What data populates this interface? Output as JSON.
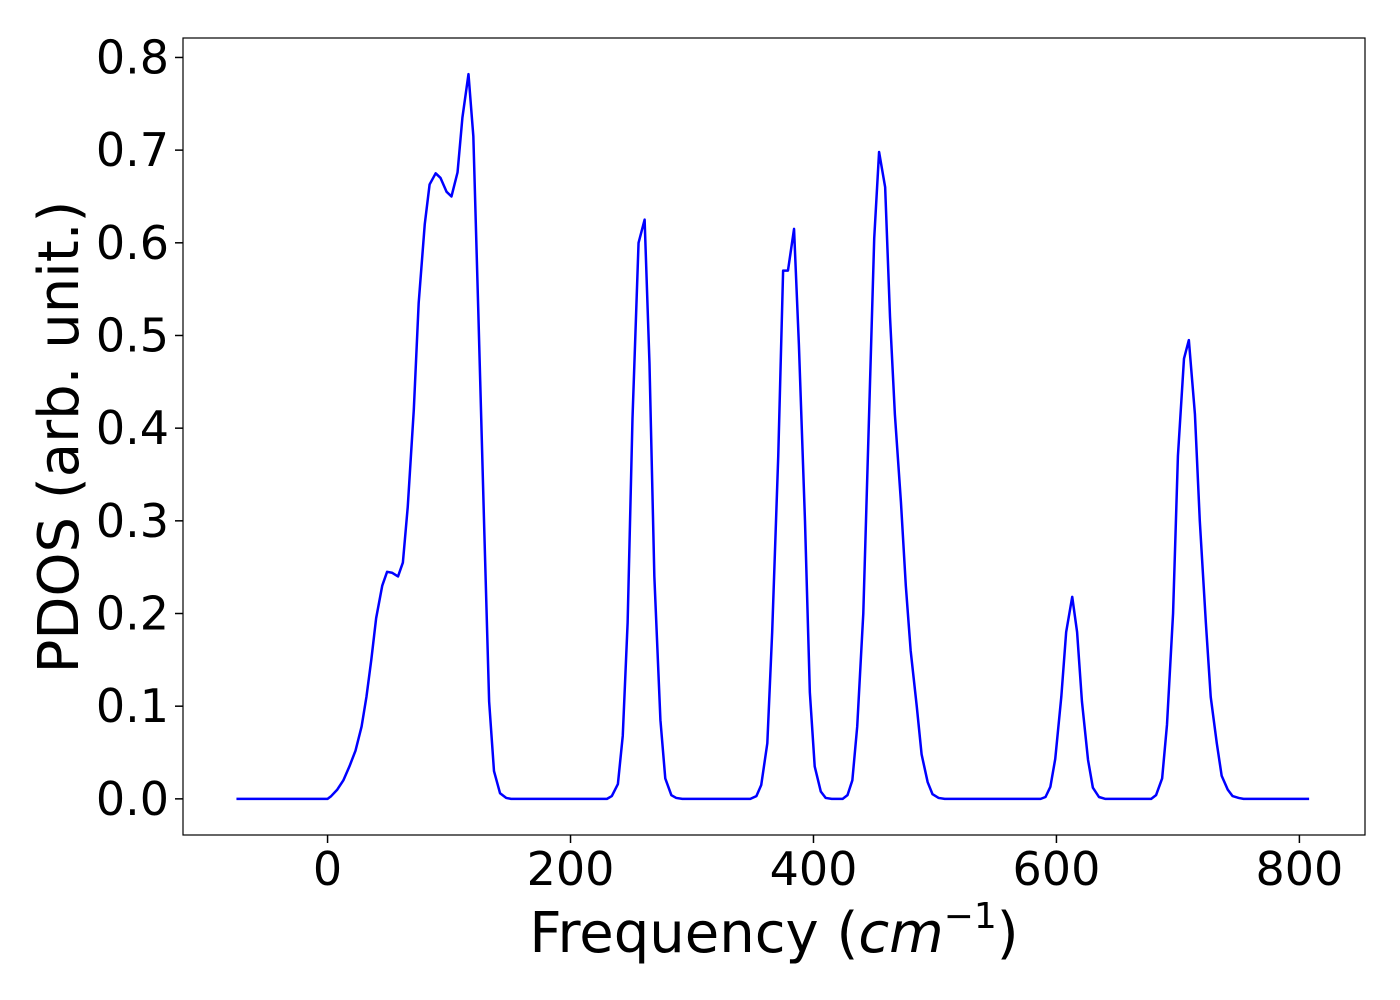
{
  "chart_data": {
    "type": "line",
    "xlabel": [
      "Frequency (",
      "cm",
      "−1",
      ")"
    ],
    "ylabel": "PDOS (arb. unit.)",
    "x": [
      -75,
      0,
      3,
      8,
      13,
      18,
      23,
      28,
      32,
      36,
      40,
      45,
      49,
      53,
      58,
      62,
      66,
      71,
      75,
      80,
      84,
      89,
      93,
      98,
      102,
      107,
      111,
      116,
      120,
      124,
      129,
      133,
      137,
      142,
      147,
      151,
      230,
      234,
      239,
      243,
      247,
      251,
      256,
      261,
      265,
      269,
      274,
      278,
      283,
      287,
      292,
      348,
      353,
      357,
      362,
      366,
      371,
      375,
      379,
      384,
      388,
      393,
      397,
      401,
      406,
      410,
      415,
      424,
      428,
      432,
      436,
      441,
      445,
      450,
      454,
      459,
      463,
      467,
      472,
      476,
      480,
      485,
      489,
      494,
      498,
      503,
      508,
      587,
      591,
      595,
      599,
      604,
      608,
      613,
      617,
      621,
      626,
      630,
      635,
      640,
      678,
      682,
      687,
      691,
      696,
      700,
      705,
      709,
      714,
      718,
      723,
      727,
      732,
      736,
      741,
      745,
      750,
      754,
      808
    ],
    "values": [
      0,
      0,
      0.003,
      0.01,
      0.02,
      0.035,
      0.052,
      0.078,
      0.11,
      0.15,
      0.195,
      0.23,
      0.245,
      0.244,
      0.24,
      0.255,
      0.315,
      0.42,
      0.535,
      0.62,
      0.663,
      0.675,
      0.67,
      0.655,
      0.65,
      0.676,
      0.735,
      0.782,
      0.715,
      0.53,
      0.29,
      0.105,
      0.03,
      0.006,
      0.001,
      0,
      0,
      0.003,
      0.016,
      0.068,
      0.19,
      0.41,
      0.6,
      0.625,
      0.47,
      0.24,
      0.085,
      0.022,
      0.004,
      0.001,
      0,
      0,
      0.003,
      0.015,
      0.06,
      0.18,
      0.37,
      0.57,
      0.57,
      0.615,
      0.49,
      0.3,
      0.115,
      0.035,
      0.008,
      0.001,
      0,
      0,
      0.004,
      0.02,
      0.078,
      0.2,
      0.38,
      0.605,
      0.698,
      0.66,
      0.52,
      0.415,
      0.32,
      0.23,
      0.16,
      0.1,
      0.048,
      0.018,
      0.005,
      0.001,
      0,
      0,
      0.002,
      0.013,
      0.043,
      0.11,
      0.18,
      0.218,
      0.18,
      0.105,
      0.042,
      0.012,
      0.002,
      0,
      0,
      0.004,
      0.022,
      0.08,
      0.2,
      0.37,
      0.475,
      0.495,
      0.415,
      0.3,
      0.19,
      0.11,
      0.06,
      0.025,
      0.01,
      0.003,
      0.001,
      0,
      0
    ],
    "color": "#0000ff",
    "xlim": [
      -119,
      854
    ],
    "xticks": [
      0,
      200,
      400,
      600,
      800
    ],
    "ylim": [
      -0.039,
      0.821
    ],
    "yticks": [
      {
        "value": 0,
        "label": "0.0"
      },
      0.1,
      0.2,
      0.3,
      0.4,
      0.5,
      0.6,
      0.7,
      0.8
    ],
    "grid": false
  }
}
